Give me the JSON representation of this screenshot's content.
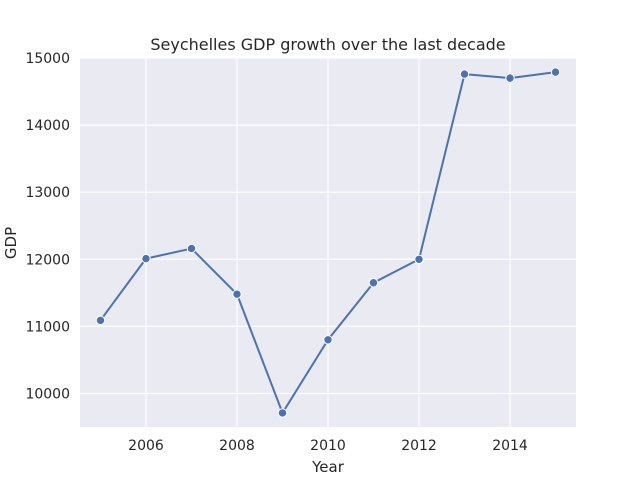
{
  "chart_data": {
    "type": "line",
    "title": "Seychelles GDP growth over the last decade",
    "xlabel": "Year",
    "ylabel": "GDP",
    "x": [
      2005,
      2006,
      2007,
      2008,
      2009,
      2010,
      2011,
      2012,
      2013,
      2014,
      2015
    ],
    "series": [
      {
        "values": [
          11090,
          12010,
          12160,
          11480,
          9710,
          10800,
          11650,
          12000,
          14760,
          14700,
          14790
        ]
      }
    ],
    "xlim": [
      2004.55,
      2015.45
    ],
    "ylim": [
      9500,
      15000
    ],
    "xticks": [
      "2006",
      "2008",
      "2010",
      "2012",
      "2014"
    ],
    "yticks": [
      "10000",
      "11000",
      "12000",
      "13000",
      "14000",
      "15000"
    ],
    "grid": true,
    "line_color": "#4c72b0",
    "background_color": "#eaeaf2"
  }
}
